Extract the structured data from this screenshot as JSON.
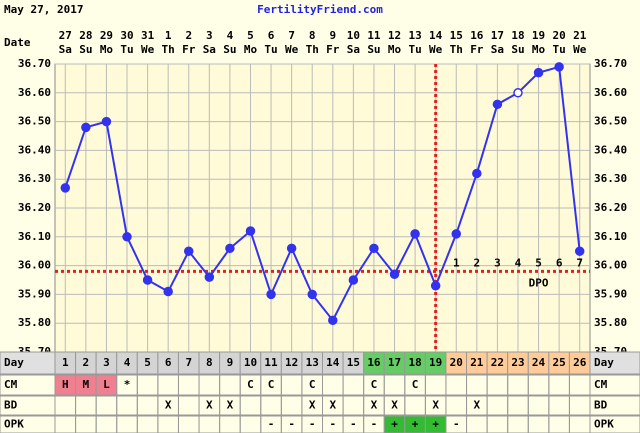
{
  "header": {
    "date": "May 27, 2017",
    "site": "FertilityFriend.com"
  },
  "chart_data": {
    "type": "line",
    "x_label": "Date",
    "dates": [
      "27",
      "28",
      "29",
      "30",
      "31",
      "1",
      "2",
      "3",
      "4",
      "5",
      "6",
      "7",
      "8",
      "9",
      "10",
      "11",
      "12",
      "13",
      "14",
      "15",
      "16",
      "17",
      "18",
      "19",
      "20",
      "21"
    ],
    "weekdays": [
      "Sa",
      "Su",
      "Mo",
      "Tu",
      "We",
      "Th",
      "Fr",
      "Sa",
      "Su",
      "Mo",
      "Tu",
      "We",
      "Th",
      "Fr",
      "Sa",
      "Su",
      "Mo",
      "Tu",
      "We",
      "Th",
      "Fr",
      "Sa",
      "Su",
      "Mo",
      "Tu",
      "We"
    ],
    "values": [
      36.27,
      36.48,
      36.5,
      36.1,
      35.95,
      35.91,
      36.05,
      35.96,
      36.06,
      36.12,
      35.9,
      36.06,
      35.9,
      35.81,
      35.95,
      36.06,
      35.97,
      36.11,
      35.93,
      36.11,
      36.32,
      36.56,
      36.6,
      36.67,
      36.69,
      36.05
    ],
    "open_points": [
      22
    ],
    "color": "#3333ee",
    "coverline": 35.98,
    "coverline_color": "#dd2222",
    "ovulation_day": 19,
    "dpo": [
      null,
      null,
      null,
      null,
      null,
      null,
      null,
      null,
      null,
      null,
      null,
      null,
      null,
      null,
      null,
      null,
      null,
      null,
      null,
      1,
      2,
      3,
      4,
      5,
      6,
      7
    ],
    "dpo_label": "DPO",
    "ylim": [
      35.7,
      36.7
    ],
    "yticks": [
      {
        "value": 35.7,
        "label": "35.70"
      },
      {
        "value": 35.8,
        "label": "35.80"
      },
      {
        "value": 35.9,
        "label": "35.90"
      },
      {
        "value": 36.0,
        "label": "36.00"
      },
      {
        "value": 36.1,
        "label": "36.10"
      },
      {
        "value": 36.2,
        "label": "36.20"
      },
      {
        "value": 36.3,
        "label": "36.30"
      },
      {
        "value": 36.4,
        "label": "36.40"
      },
      {
        "value": 36.5,
        "label": "36.50"
      },
      {
        "value": 36.6,
        "label": "36.60"
      },
      {
        "value": 36.7,
        "label": "36.70"
      }
    ],
    "grid": true,
    "rows": [
      {
        "label": "Day",
        "values": [
          1,
          2,
          3,
          4,
          5,
          6,
          7,
          8,
          9,
          10,
          11,
          12,
          13,
          14,
          15,
          16,
          17,
          18,
          19,
          20,
          21,
          22,
          23,
          24,
          25,
          26
        ],
        "colors": [
          "#d4d4d4",
          "#d4d4d4",
          "#d4d4d4",
          "#d4d4d4",
          "#d4d4d4",
          "#d4d4d4",
          "#d4d4d4",
          "#d4d4d4",
          "#d4d4d4",
          "#d4d4d4",
          "#d4d4d4",
          "#d4d4d4",
          "#d4d4d4",
          "#d4d4d4",
          "#d4d4d4",
          "#66cc66",
          "#66cc66",
          "#66cc66",
          "#66cc66",
          "#ffcc99",
          "#ffcc99",
          "#ffcc99",
          "#ffcc99",
          "#ffcc99",
          "#ffcc99",
          "#ffcc99"
        ]
      },
      {
        "label": "CM",
        "values": [
          "H",
          "M",
          "L",
          "*",
          null,
          null,
          null,
          null,
          null,
          "C",
          "C",
          null,
          "C",
          null,
          null,
          "C",
          null,
          "C",
          null,
          null,
          null,
          null,
          null,
          null,
          null,
          null
        ],
        "colors": [
          "#f08090",
          "#f08090",
          "#f08090",
          null,
          null,
          null,
          null,
          null,
          null,
          null,
          null,
          null,
          null,
          null,
          null,
          null,
          null,
          null,
          null,
          null,
          null,
          null,
          null,
          null,
          null,
          null
        ]
      },
      {
        "label": "BD",
        "values": [
          null,
          null,
          null,
          null,
          null,
          "X",
          null,
          "X",
          "X",
          null,
          null,
          null,
          "X",
          "X",
          null,
          "X",
          "X",
          null,
          "X",
          null,
          "X",
          null,
          null,
          null,
          null,
          null
        ],
        "colors": null
      },
      {
        "label": "OPK",
        "values": [
          null,
          null,
          null,
          null,
          null,
          null,
          null,
          null,
          null,
          null,
          "-",
          "-",
          "-",
          "-",
          "-",
          "-",
          "+",
          "+",
          "+",
          "-",
          null,
          null,
          null,
          null,
          null,
          null
        ],
        "colors": [
          null,
          null,
          null,
          null,
          null,
          null,
          null,
          null,
          null,
          null,
          null,
          null,
          null,
          null,
          null,
          null,
          "#33bb33",
          "#33bb33",
          "#33bb33",
          null,
          null,
          null,
          null,
          null,
          null,
          null
        ]
      }
    ]
  }
}
